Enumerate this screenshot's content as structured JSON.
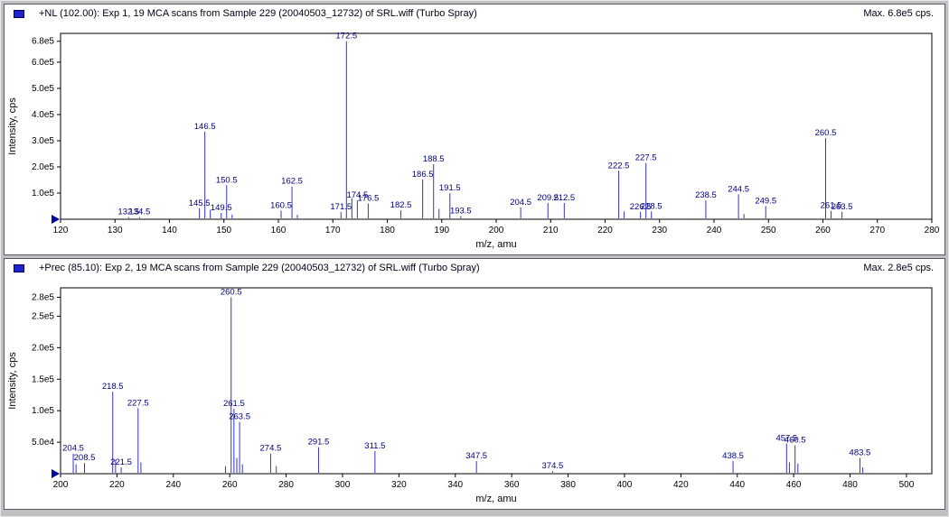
{
  "colors": {
    "peak": "#3333cc",
    "peak_label": "#000080",
    "axis": "#000000",
    "marker": "#0000a0",
    "icon": "#2222cc"
  },
  "panels": [
    {
      "title": "+NL (102.00): Exp 1, 19 MCA scans from Sample 229 (20040503_12732) of SRL.wiff (Turbo Spray)",
      "max_label": "Max. 6.8e5 cps."
    },
    {
      "title": "+Prec (85.10): Exp 2, 19 MCA scans from Sample 229 (20040503_12732) of SRL.wiff (Turbo Spray)",
      "max_label": "Max. 2.8e5 cps."
    }
  ],
  "chart_data": [
    {
      "type": "stick",
      "xlabel": "m/z, amu",
      "ylabel": "Intensity, cps",
      "xlim": [
        120,
        280
      ],
      "ylim": [
        0,
        710000
      ],
      "x_ticks": [
        120,
        130,
        140,
        150,
        160,
        170,
        180,
        190,
        200,
        210,
        220,
        230,
        240,
        250,
        260,
        270,
        280
      ],
      "y_ticks": [
        {
          "value": 100000,
          "label": "1.0e5"
        },
        {
          "value": 200000,
          "label": "2.0e5"
        },
        {
          "value": 300000,
          "label": "3.0e5"
        },
        {
          "value": 400000,
          "label": "4.0e5"
        },
        {
          "value": 500000,
          "label": "5.0e5"
        },
        {
          "value": 600000,
          "label": "6.0e5"
        },
        {
          "value": 680000,
          "label": "6.8e5"
        }
      ],
      "peaks": [
        {
          "mz": 132.5,
          "intensity": 8000,
          "label": "132.5"
        },
        {
          "mz": 134.5,
          "intensity": 8000,
          "label": "134.5"
        },
        {
          "mz": 145.5,
          "intensity": 42000,
          "label": "145.5"
        },
        {
          "mz": 146.5,
          "intensity": 335000,
          "label": "146.5"
        },
        {
          "mz": 147.5,
          "intensity": 36000,
          "label": ""
        },
        {
          "mz": 149.5,
          "intensity": 24000,
          "label": "149.5"
        },
        {
          "mz": 150.5,
          "intensity": 130000,
          "label": "150.5"
        },
        {
          "mz": 151.5,
          "intensity": 18000,
          "label": ""
        },
        {
          "mz": 160.5,
          "intensity": 33000,
          "label": "160.5"
        },
        {
          "mz": 162.5,
          "intensity": 125000,
          "label": "162.5"
        },
        {
          "mz": 163.5,
          "intensity": 17000,
          "label": ""
        },
        {
          "mz": 171.5,
          "intensity": 28000,
          "label": "171.5"
        },
        {
          "mz": 172.5,
          "intensity": 680000,
          "label": "172.5"
        },
        {
          "mz": 173.5,
          "intensity": 80000,
          "label": ""
        },
        {
          "mz": 174.5,
          "intensity": 72000,
          "label": "174.5"
        },
        {
          "mz": 176.5,
          "intensity": 60000,
          "label": "176.5"
        },
        {
          "mz": 182.5,
          "intensity": 34000,
          "label": "182.5"
        },
        {
          "mz": 186.5,
          "intensity": 152000,
          "label": "186.5"
        },
        {
          "mz": 188.5,
          "intensity": 210000,
          "label": "188.5"
        },
        {
          "mz": 189.5,
          "intensity": 40000,
          "label": ""
        },
        {
          "mz": 191.5,
          "intensity": 100000,
          "label": "191.5"
        },
        {
          "mz": 193.5,
          "intensity": 12000,
          "label": "193.5"
        },
        {
          "mz": 204.5,
          "intensity": 45000,
          "label": "204.5"
        },
        {
          "mz": 209.5,
          "intensity": 62000,
          "label": "209.5"
        },
        {
          "mz": 212.5,
          "intensity": 62000,
          "label": "212.5"
        },
        {
          "mz": 222.5,
          "intensity": 185000,
          "label": "222.5"
        },
        {
          "mz": 223.5,
          "intensity": 30000,
          "label": ""
        },
        {
          "mz": 226.5,
          "intensity": 28000,
          "label": "226.5"
        },
        {
          "mz": 227.5,
          "intensity": 215000,
          "label": "227.5"
        },
        {
          "mz": 228.5,
          "intensity": 30000,
          "label": "228.5"
        },
        {
          "mz": 238.5,
          "intensity": 72000,
          "label": "238.5"
        },
        {
          "mz": 244.5,
          "intensity": 95000,
          "label": "244.5"
        },
        {
          "mz": 245.5,
          "intensity": 20000,
          "label": ""
        },
        {
          "mz": 249.5,
          "intensity": 50000,
          "label": "249.5"
        },
        {
          "mz": 260.5,
          "intensity": 310000,
          "label": "260.5"
        },
        {
          "mz": 261.5,
          "intensity": 32000,
          "label": "261.5"
        },
        {
          "mz": 263.5,
          "intensity": 28000,
          "label": "263.5"
        }
      ]
    },
    {
      "type": "stick",
      "xlabel": "m/z, amu",
      "ylabel": "Intensity, cps",
      "xlim": [
        200,
        509
      ],
      "ylim": [
        0,
        295000
      ],
      "x_ticks": [
        200,
        220,
        240,
        260,
        280,
        300,
        320,
        340,
        360,
        380,
        400,
        420,
        440,
        460,
        480,
        500
      ],
      "y_ticks": [
        {
          "value": 50000,
          "label": "5.0e4"
        },
        {
          "value": 100000,
          "label": "1.0e5"
        },
        {
          "value": 150000,
          "label": "1.5e5"
        },
        {
          "value": 200000,
          "label": "2.0e5"
        },
        {
          "value": 250000,
          "label": "2.5e5"
        },
        {
          "value": 280000,
          "label": "2.8e5"
        }
      ],
      "peaks": [
        {
          "mz": 204.5,
          "intensity": 32000,
          "label": "204.5"
        },
        {
          "mz": 205.5,
          "intensity": 15000,
          "label": ""
        },
        {
          "mz": 208.5,
          "intensity": 17000,
          "label": "208.5"
        },
        {
          "mz": 218.5,
          "intensity": 130000,
          "label": "218.5"
        },
        {
          "mz": 219.5,
          "intensity": 22000,
          "label": ""
        },
        {
          "mz": 221.5,
          "intensity": 10000,
          "label": "221.5"
        },
        {
          "mz": 227.5,
          "intensity": 104000,
          "label": "227.5"
        },
        {
          "mz": 228.5,
          "intensity": 18000,
          "label": ""
        },
        {
          "mz": 258.5,
          "intensity": 12000,
          "label": ""
        },
        {
          "mz": 260.5,
          "intensity": 280000,
          "label": "260.5"
        },
        {
          "mz": 261.5,
          "intensity": 103000,
          "label": "261.5"
        },
        {
          "mz": 262.5,
          "intensity": 25000,
          "label": ""
        },
        {
          "mz": 263.5,
          "intensity": 82000,
          "label": "263.5"
        },
        {
          "mz": 264.5,
          "intensity": 15000,
          "label": ""
        },
        {
          "mz": 274.5,
          "intensity": 32000,
          "label": "274.5"
        },
        {
          "mz": 276.5,
          "intensity": 12000,
          "label": ""
        },
        {
          "mz": 291.5,
          "intensity": 42000,
          "label": "291.5"
        },
        {
          "mz": 311.5,
          "intensity": 36000,
          "label": "311.5"
        },
        {
          "mz": 347.5,
          "intensity": 20000,
          "label": "347.5"
        },
        {
          "mz": 374.5,
          "intensity": 4000,
          "label": "374.5"
        },
        {
          "mz": 438.5,
          "intensity": 20000,
          "label": "438.5"
        },
        {
          "mz": 457.5,
          "intensity": 48000,
          "label": "457.5"
        },
        {
          "mz": 458.5,
          "intensity": 18000,
          "label": ""
        },
        {
          "mz": 460.5,
          "intensity": 45000,
          "label": "460.5"
        },
        {
          "mz": 461.5,
          "intensity": 16000,
          "label": ""
        },
        {
          "mz": 483.5,
          "intensity": 25000,
          "label": "483.5"
        },
        {
          "mz": 484.5,
          "intensity": 10000,
          "label": ""
        }
      ]
    }
  ]
}
